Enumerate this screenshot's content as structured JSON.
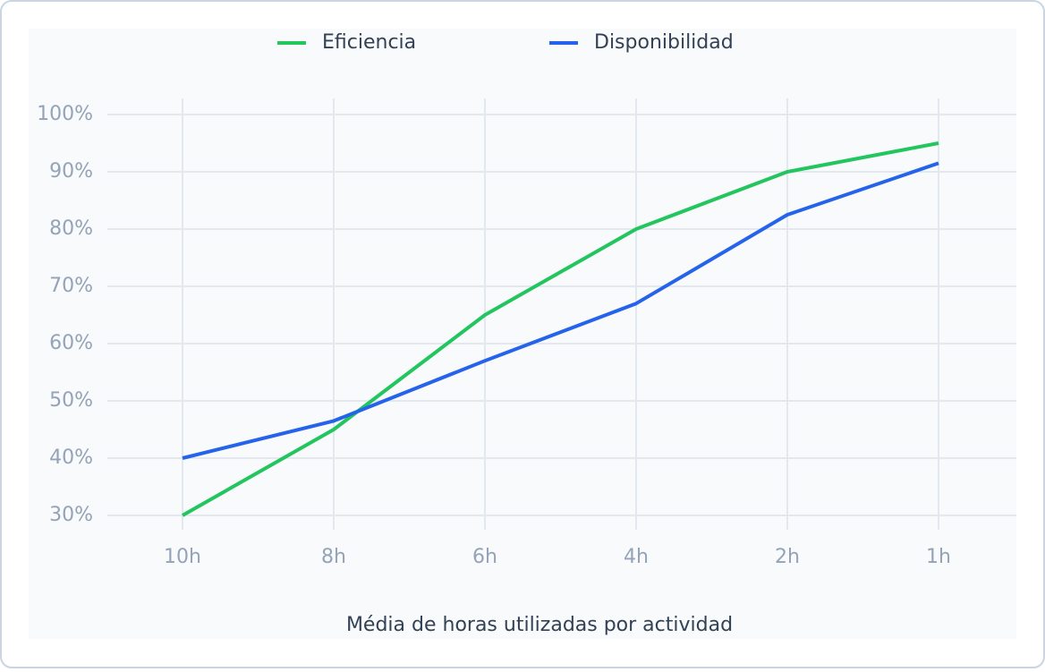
{
  "chart_data": {
    "type": "line",
    "categories": [
      "10h",
      "8h",
      "6h",
      "4h",
      "2h",
      "1h"
    ],
    "series": [
      {
        "name": "Eficiencia",
        "color": "#22c55e",
        "values": [
          30,
          45,
          65,
          80,
          90,
          95
        ]
      },
      {
        "name": "Disponibilidad",
        "color": "#2563eb",
        "values": [
          40,
          46.5,
          57,
          67,
          82.5,
          91.5
        ]
      }
    ],
    "ylim": [
      30,
      100
    ],
    "yticks": [
      {
        "value": 30,
        "label": "30%"
      },
      {
        "value": 40,
        "label": "40%"
      },
      {
        "value": 50,
        "label": "50%"
      },
      {
        "value": 60,
        "label": "60%"
      },
      {
        "value": 70,
        "label": "70%"
      },
      {
        "value": 80,
        "label": "80%"
      },
      {
        "value": 90,
        "label": "90%"
      },
      {
        "value": 100,
        "label": "100%"
      }
    ],
    "x_label": "Média de horas utilizadas por actividad",
    "grid": true
  }
}
